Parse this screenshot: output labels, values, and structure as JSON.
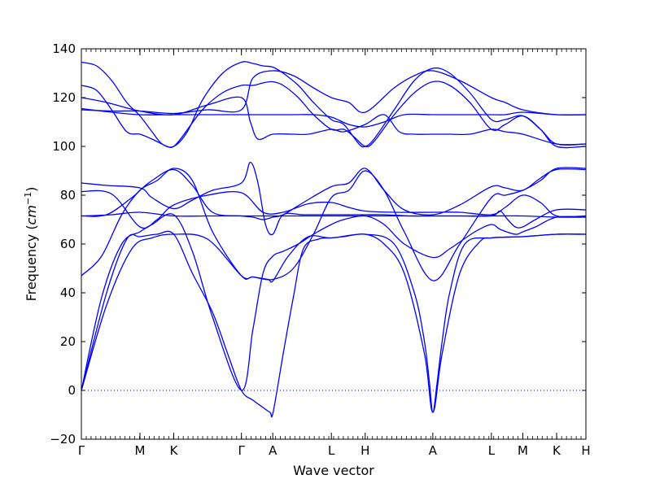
{
  "chart_data": {
    "type": "line",
    "xlabel": "Wave vector",
    "ylabel_text": "Frequency (",
    "ylabel_unit": "cm",
    "ylabel_sup": "−1",
    "ylabel_close": ")",
    "ylim": [
      -20,
      140
    ],
    "yticks": [
      -20,
      0,
      20,
      40,
      60,
      80,
      100,
      120,
      140
    ],
    "xlim": [
      0,
      100
    ],
    "kpoints": [
      {
        "label": "Γ",
        "x": 0
      },
      {
        "label": "M",
        "x": 11.61
      },
      {
        "label": "K",
        "x": 18.31
      },
      {
        "label": "Γ",
        "x": 31.72
      },
      {
        "label": "A",
        "x": 37.94
      },
      {
        "label": "L",
        "x": 49.55
      },
      {
        "label": "H",
        "x": 56.25
      },
      {
        "label": "A",
        "x": 69.66
      },
      {
        "label": "L",
        "x": 81.27
      },
      {
        "label": "M",
        "x": 87.49
      },
      {
        "label": "K",
        "x": 94.19
      },
      {
        "label": "H",
        "x": 100
      }
    ],
    "zero_line": {
      "y": 0,
      "style": "dotted"
    },
    "line_color": "#0000ff",
    "series": [
      {
        "x": [
          0,
          5,
          10,
          14,
          18.31,
          25,
          31.72,
          34,
          37,
          38,
          41,
          45,
          49.55,
          56.25,
          62,
          66,
          68,
          69,
          69.66,
          70.5,
          71.5,
          73,
          76,
          81.27,
          87.49,
          94.19,
          100
        ],
        "y": [
          0,
          35,
          58,
          62.5,
          64,
          62,
          47,
          46.5,
          45.5,
          45,
          55,
          63,
          62.5,
          64,
          60,
          40,
          20,
          3,
          -9,
          3,
          20,
          40,
          60,
          62.5,
          63,
          64,
          64
        ]
      },
      {
        "x": [
          0,
          5,
          9,
          11.61,
          15,
          18.31,
          22,
          26,
          29,
          31.72,
          34,
          36,
          37.4,
          38,
          40,
          42,
          44,
          47,
          49.55,
          52,
          56.25,
          60,
          64,
          68,
          69.66,
          71.5,
          75,
          79,
          81.27,
          84,
          87.49,
          94.19,
          100
        ],
        "y": [
          0,
          40,
          62,
          63,
          64,
          64,
          48,
          32,
          15,
          0,
          -4,
          -7,
          -9,
          -9,
          15,
          38,
          58,
          62,
          62.5,
          63,
          64,
          60,
          48,
          15,
          -9,
          15,
          48,
          61,
          62.5,
          62.8,
          63,
          64,
          64
        ]
      },
      {
        "x": [
          0,
          4,
          8,
          11.61,
          14,
          18.31,
          22,
          26,
          31.72,
          34,
          36,
          37.94,
          40,
          43,
          46,
          49.55,
          52,
          56.25,
          60,
          64,
          69.66,
          73,
          78,
          81.27,
          83,
          86,
          87.49,
          90,
          94.19,
          100
        ],
        "y": [
          0,
          38,
          60,
          65,
          68,
          72,
          57,
          30,
          0,
          25,
          48,
          55,
          57,
          60,
          64,
          68,
          70,
          71.5,
          68,
          60,
          54.5,
          58,
          65,
          68,
          66,
          64,
          65,
          67,
          71,
          71
        ]
      },
      {
        "x": [
          0,
          4,
          8,
          11.61,
          15,
          18.31,
          22,
          26,
          31.72,
          34,
          37.94,
          42,
          46,
          49.55,
          53,
          56.25,
          60,
          64,
          69.66,
          75,
          81.27,
          84,
          87.49,
          91,
          94.19,
          100
        ],
        "y": [
          47,
          55,
          72,
          82,
          86,
          91,
          86,
          65,
          47,
          46.5,
          45.5,
          50,
          64,
          79,
          82,
          90,
          82,
          65,
          45,
          60,
          79,
          80,
          82,
          86,
          91,
          91
        ]
      },
      {
        "x": [
          0,
          5,
          10,
          11.61,
          14,
          18.31,
          22,
          26,
          31.72,
          34,
          36,
          37.94,
          40,
          44,
          49.55,
          53,
          56.25,
          60,
          64,
          69.66,
          75,
          81.27,
          84,
          87.49,
          91,
          94.19,
          100
        ],
        "y": [
          71.5,
          72,
          79,
          82,
          86,
          90.5,
          84,
          73,
          71.5,
          71,
          70,
          71,
          72,
          77,
          83.5,
          85,
          91,
          82,
          74,
          72,
          76,
          83.5,
          83,
          82,
          87,
          90.5,
          90.5
        ]
      },
      {
        "x": [
          0,
          5,
          11.61,
          14,
          18.31,
          22,
          26,
          31.72,
          33.5,
          35,
          36.5,
          37.94,
          40,
          44,
          49.55,
          56.25,
          60,
          65,
          69.66,
          75,
          81.27,
          83,
          84.5,
          86,
          87.49,
          90,
          94.19,
          100
        ],
        "y": [
          85,
          84,
          83,
          79,
          74.5,
          78,
          82,
          85,
          93.5,
          85,
          68,
          64,
          72,
          72,
          72,
          72,
          72,
          71.5,
          71.5,
          71.5,
          71.5,
          73.5,
          70,
          67,
          67,
          70,
          74,
          74
        ]
      },
      {
        "x": [
          0,
          6,
          11.61,
          15,
          18.31,
          25,
          31.72,
          36,
          40,
          45,
          49.55,
          53,
          56.25,
          62,
          69.66,
          75,
          81.27,
          84,
          87.49,
          91,
          94.19,
          100
        ],
        "y": [
          81.5,
          80.5,
          67,
          70,
          76,
          80,
          81,
          73,
          73,
          76.5,
          77,
          75,
          73.5,
          73,
          73,
          73,
          72,
          75,
          80,
          77,
          71.5,
          71.5
        ]
      },
      {
        "x": [
          0,
          6,
          11.61,
          18.31,
          25,
          31.72,
          37.94,
          45,
          49.55,
          56.25,
          62,
          69.66,
          75,
          81.27,
          87.49,
          94.19,
          100
        ],
        "y": [
          71.5,
          72,
          73,
          71.5,
          71.5,
          71.5,
          71.5,
          71.5,
          71.5,
          71.5,
          71.5,
          71.5,
          71.5,
          71.5,
          71.5,
          71,
          71
        ]
      },
      {
        "x": [
          0,
          3,
          6,
          9,
          11.61,
          14,
          16,
          18.31,
          21,
          24,
          28,
          31.72,
          34,
          36,
          37.94,
          40,
          43,
          46,
          49.55,
          52,
          55,
          56.25,
          58,
          62,
          66,
          69.66,
          73,
          77,
          81.27,
          84,
          87.49,
          91,
          94.19,
          100
        ],
        "y": [
          134.5,
          133,
          127,
          118,
          112.5,
          106,
          101,
          100,
          106,
          119,
          130,
          134.5,
          134,
          133,
          132.5,
          130,
          125,
          118,
          111,
          109,
          101,
          100,
          103,
          115,
          127,
          132,
          130,
          122,
          111,
          111,
          112.5,
          107,
          101,
          101
        ]
      },
      {
        "x": [
          0,
          3,
          6,
          9,
          11.61,
          14,
          17,
          18.31,
          20,
          24,
          28,
          31.72,
          34,
          36,
          37.94,
          40,
          43,
          46,
          49.55,
          52,
          54,
          56.25,
          58,
          62,
          66,
          69.66,
          73,
          77,
          81.27,
          84,
          87.49,
          91,
          94.19,
          100
        ],
        "y": [
          125,
          123,
          115,
          106,
          105,
          103,
          100,
          100,
          104,
          115,
          122,
          125,
          125,
          126,
          126.5,
          125,
          120,
          113,
          107,
          107,
          104,
          100,
          102,
          113,
          122,
          126.5,
          125,
          118,
          107,
          109,
          112.5,
          107,
          100,
          100
        ]
      },
      {
        "x": [
          0,
          5,
          11.61,
          18.31,
          25,
          31.72,
          33.5,
          35,
          37.94,
          42,
          45,
          49.55,
          52,
          56.25,
          60,
          63,
          66,
          69.66,
          73,
          77,
          81.27,
          84,
          87.49,
          94.19,
          100
        ],
        "y": [
          120,
          118,
          114.5,
          113,
          117,
          120,
          110,
          103,
          105,
          105,
          105,
          107,
          106,
          109,
          113,
          106,
          105,
          105,
          105,
          105,
          107,
          106,
          105,
          101,
          101
        ]
      },
      {
        "x": [
          0,
          6,
          11.61,
          18.31,
          25,
          31.72,
          34,
          37.94,
          42,
          46,
          49.55,
          53,
          56.25,
          62,
          66,
          69.66,
          75,
          81.27,
          84,
          87.49,
          94.19,
          100
        ],
        "y": [
          115,
          114.5,
          114.5,
          113.5,
          115,
          115,
          128,
          131,
          129,
          124,
          120,
          118,
          114,
          124,
          129,
          131,
          127,
          120,
          118,
          115,
          113,
          113
        ]
      },
      {
        "x": [
          0,
          6,
          11.61,
          18.31,
          25,
          31.72,
          34,
          37.94,
          42,
          46,
          49.55,
          53,
          56.25,
          60,
          64,
          69.66,
          75,
          81.27,
          84,
          87.49,
          94.19,
          100
        ],
        "y": [
          115.5,
          114,
          113,
          113,
          113,
          113,
          113,
          113,
          113,
          113,
          112,
          109,
          108,
          110,
          113,
          113,
          113,
          113,
          113,
          114,
          113,
          113
        ]
      }
    ]
  }
}
